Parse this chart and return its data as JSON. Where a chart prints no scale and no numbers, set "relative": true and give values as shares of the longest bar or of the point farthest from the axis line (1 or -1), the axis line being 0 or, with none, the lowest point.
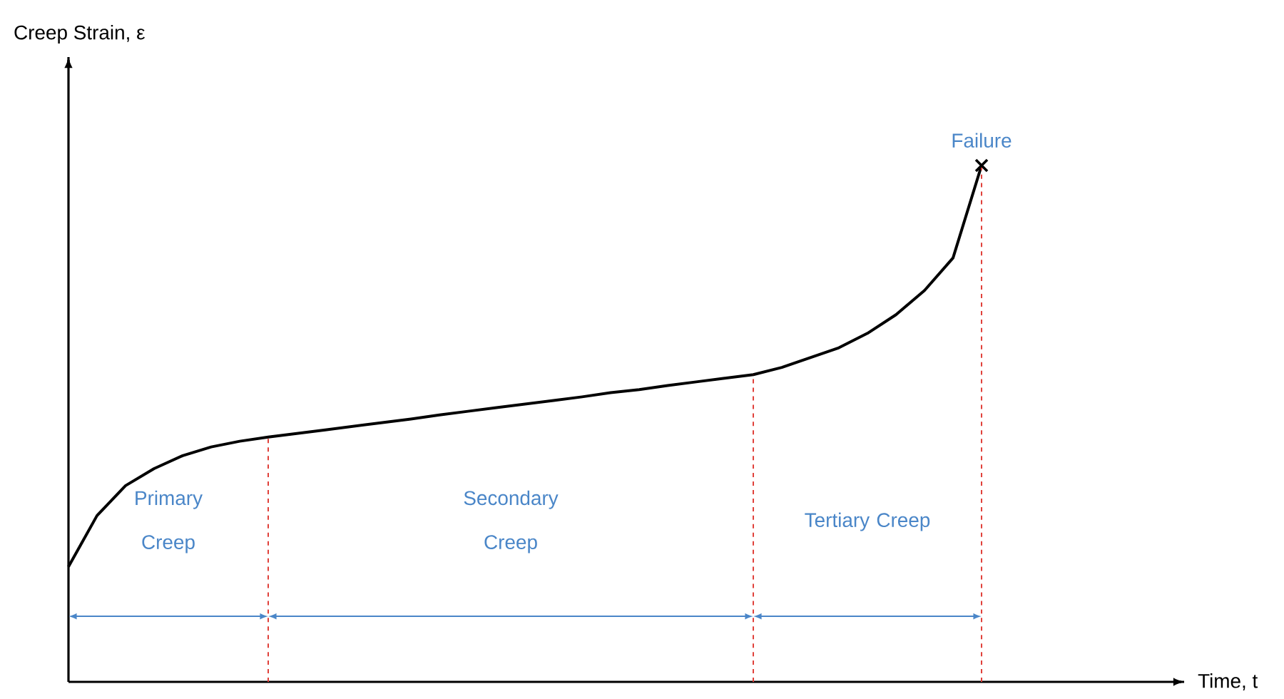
{
  "chart_data": {
    "type": "line",
    "relative": true,
    "categories": [
      null,
      null,
      null,
      null,
      null,
      null,
      null,
      null,
      null,
      null,
      null,
      null,
      null,
      null,
      null,
      null,
      null,
      null,
      null,
      null,
      null,
      null,
      null,
      null,
      null,
      null,
      null,
      null,
      null,
      null,
      null,
      null,
      null
    ],
    "series": [
      {
        "color": "#000000",
        "values": [
          0.223,
          0.322,
          0.38,
          0.413,
          0.438,
          0.455,
          0.466,
          0.474,
          0.481,
          0.488,
          0.495,
          0.502,
          0.509,
          0.517,
          0.524,
          0.531,
          0.538,
          0.545,
          0.552,
          0.56,
          0.566,
          0.574,
          0.581,
          0.588,
          0.595,
          0.609,
          0.628,
          0.647,
          0.675,
          0.711,
          0.758,
          0.821,
          1
        ]
      }
    ],
    "annotations": [
      "Creep Strain, ε",
      "Time, t",
      "Failure",
      "Primary Creep",
      "Secondary Creep",
      "Tertiary Creep"
    ],
    "line_style": "solid"
  }
}
